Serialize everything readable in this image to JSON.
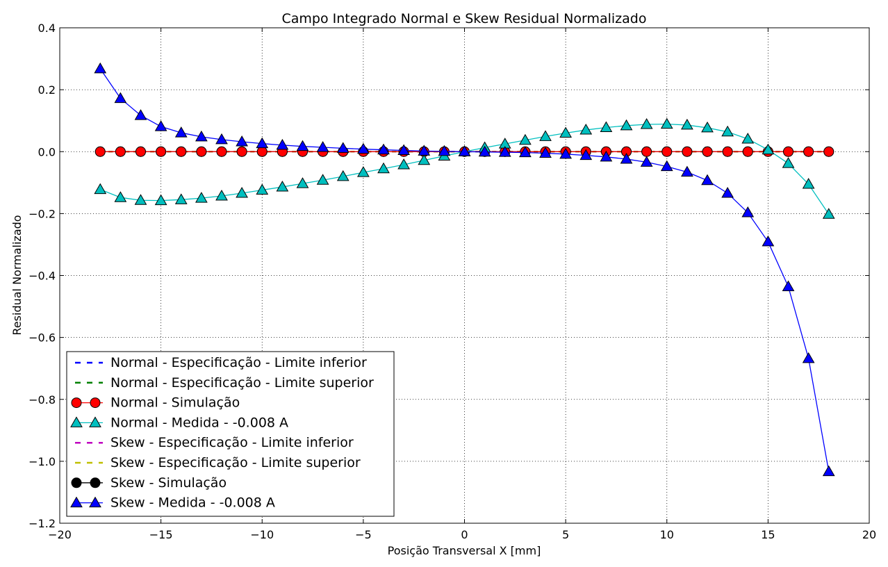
{
  "chart_data": {
    "type": "line",
    "title": "Campo Integrado Normal e Skew Residual Normalizado",
    "xlabel": "Posição Transversal X [mm]",
    "ylabel": "Residual Normalizado",
    "xlim": [
      -20,
      20
    ],
    "ylim": [
      -1.2,
      0.4
    ],
    "xticks": [
      -20,
      -15,
      -10,
      -5,
      0,
      5,
      10,
      15,
      20
    ],
    "yticks": [
      -1.2,
      -1.0,
      -0.8,
      -0.6,
      -0.4,
      -0.2,
      0.0,
      0.2,
      0.4
    ],
    "xtick_labels": [
      "−20",
      "−15",
      "−10",
      "−5",
      "0",
      "5",
      "10",
      "15",
      "20"
    ],
    "ytick_labels": [
      "−1.2",
      "−1.0",
      "−0.8",
      "−0.6",
      "−0.4",
      "−0.2",
      "0.0",
      "0.2",
      "0.4"
    ],
    "grid": true,
    "legend_position": "lower-left",
    "x": [
      -18,
      -17,
      -16,
      -15,
      -14,
      -13,
      -12,
      -11,
      -10,
      -9,
      -8,
      -7,
      -6,
      -5,
      -4,
      -3,
      -2,
      -1,
      0,
      1,
      2,
      3,
      4,
      5,
      6,
      7,
      8,
      9,
      10,
      11,
      12,
      13,
      14,
      15,
      16,
      17,
      18
    ],
    "series": [
      {
        "name": "Normal - Especificação - Limite inferior",
        "color": "#0000ff",
        "style": "dashed",
        "marker": "none",
        "values": [
          0,
          0,
          0,
          0,
          0,
          0,
          0,
          0,
          0,
          0,
          0,
          0,
          0,
          0,
          0,
          0,
          0,
          0,
          0,
          0,
          0,
          0,
          0,
          0,
          0,
          0,
          0,
          0,
          0,
          0,
          0,
          0,
          0,
          0,
          0,
          0,
          0
        ]
      },
      {
        "name": "Normal - Especificação - Limite superior",
        "color": "#008000",
        "style": "dashed",
        "marker": "none",
        "values": [
          0,
          0,
          0,
          0,
          0,
          0,
          0,
          0,
          0,
          0,
          0,
          0,
          0,
          0,
          0,
          0,
          0,
          0,
          0,
          0,
          0,
          0,
          0,
          0,
          0,
          0,
          0,
          0,
          0,
          0,
          0,
          0,
          0,
          0,
          0,
          0,
          0
        ]
      },
      {
        "name": "Normal - Simulação",
        "color": "#ff0000",
        "style": "solid",
        "marker": "circle",
        "values": [
          0,
          0,
          0,
          0,
          0,
          0,
          0,
          0,
          0,
          0,
          0,
          0,
          0,
          0,
          0,
          0,
          0,
          0,
          0,
          0,
          0,
          0,
          0,
          0,
          0,
          0,
          0,
          0,
          0,
          0,
          0,
          0,
          0,
          0,
          0,
          0,
          0
        ]
      },
      {
        "name": "Normal - Medida - -0.008 A",
        "color": "#00bfbf",
        "style": "solid",
        "marker": "triangle",
        "values": [
          -0.122,
          -0.148,
          -0.157,
          -0.158,
          -0.155,
          -0.15,
          -0.143,
          -0.134,
          -0.124,
          -0.114,
          -0.103,
          -0.092,
          -0.08,
          -0.067,
          -0.055,
          -0.042,
          -0.028,
          -0.014,
          0.0,
          0.013,
          0.025,
          0.037,
          0.049,
          0.06,
          0.07,
          0.078,
          0.084,
          0.088,
          0.089,
          0.086,
          0.077,
          0.064,
          0.041,
          0.006,
          -0.038,
          -0.105,
          -0.202
        ]
      },
      {
        "name": "Skew - Especificação - Limite inferior",
        "color": "#bf00bf",
        "style": "dashed",
        "marker": "none",
        "values": [
          0,
          0,
          0,
          0,
          0,
          0,
          0,
          0,
          0,
          0,
          0,
          0,
          0,
          0,
          0,
          0,
          0,
          0,
          0,
          0,
          0,
          0,
          0,
          0,
          0,
          0,
          0,
          0,
          0,
          0,
          0,
          0,
          0,
          0,
          0,
          0,
          0
        ]
      },
      {
        "name": "Skew - Especificação - Limite superior",
        "color": "#bfbf00",
        "style": "dashed",
        "marker": "none",
        "values": [
          0,
          0,
          0,
          0,
          0,
          0,
          0,
          0,
          0,
          0,
          0,
          0,
          0,
          0,
          0,
          0,
          0,
          0,
          0,
          0,
          0,
          0,
          0,
          0,
          0,
          0,
          0,
          0,
          0,
          0,
          0,
          0,
          0,
          0,
          0,
          0,
          0
        ]
      },
      {
        "name": "Skew - Simulação",
        "color": "#000000",
        "style": "solid",
        "marker": "circle",
        "values": [
          0,
          0,
          0,
          0,
          0,
          0,
          0,
          0,
          0,
          0,
          0,
          0,
          0,
          0,
          0,
          0,
          0,
          0,
          0,
          0,
          0,
          0,
          0,
          0,
          0,
          0,
          0,
          0,
          0,
          0,
          0,
          0,
          0,
          0,
          0,
          0,
          0
        ]
      },
      {
        "name": "Skew - Medida - -0.008 A",
        "color": "#0000ff",
        "style": "solid",
        "marker": "triangle",
        "values": [
          0.268,
          0.172,
          0.117,
          0.081,
          0.061,
          0.048,
          0.039,
          0.032,
          0.026,
          0.021,
          0.017,
          0.014,
          0.011,
          0.008,
          0.006,
          0.004,
          0.002,
          0.001,
          0.0,
          -0.001,
          -0.002,
          -0.003,
          -0.005,
          -0.008,
          -0.012,
          -0.017,
          -0.024,
          -0.034,
          -0.048,
          -0.066,
          -0.093,
          -0.134,
          -0.197,
          -0.291,
          -0.436,
          -0.668,
          -1.033
        ]
      }
    ]
  }
}
